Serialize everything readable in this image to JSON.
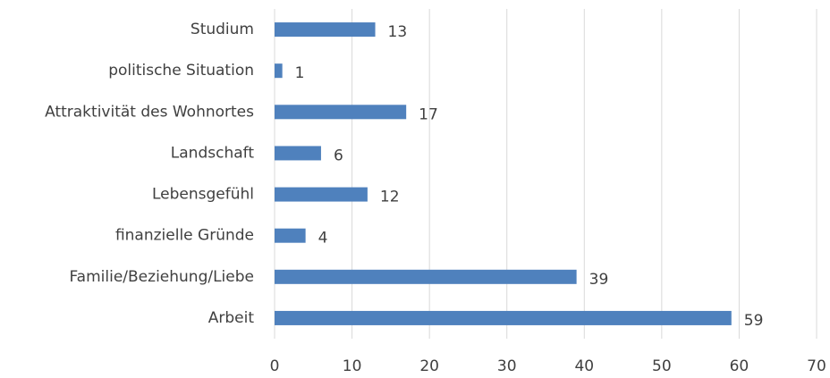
{
  "chart_data": {
    "type": "barh",
    "categories": [
      "Studium",
      "politische Situation",
      "Attraktivität des Wohnortes",
      "Landschaft",
      "Lebensgefühl",
      "finanzielle Gründe",
      "Familie/Beziehung/Liebe",
      "Arbeit"
    ],
    "values": [
      13,
      1,
      17,
      6,
      12,
      4,
      39,
      59
    ],
    "color": "#4f81bd",
    "xlim": [
      0,
      70
    ],
    "xticks": [
      0,
      10,
      20,
      30,
      40,
      50,
      60,
      70
    ],
    "grid": true
  }
}
